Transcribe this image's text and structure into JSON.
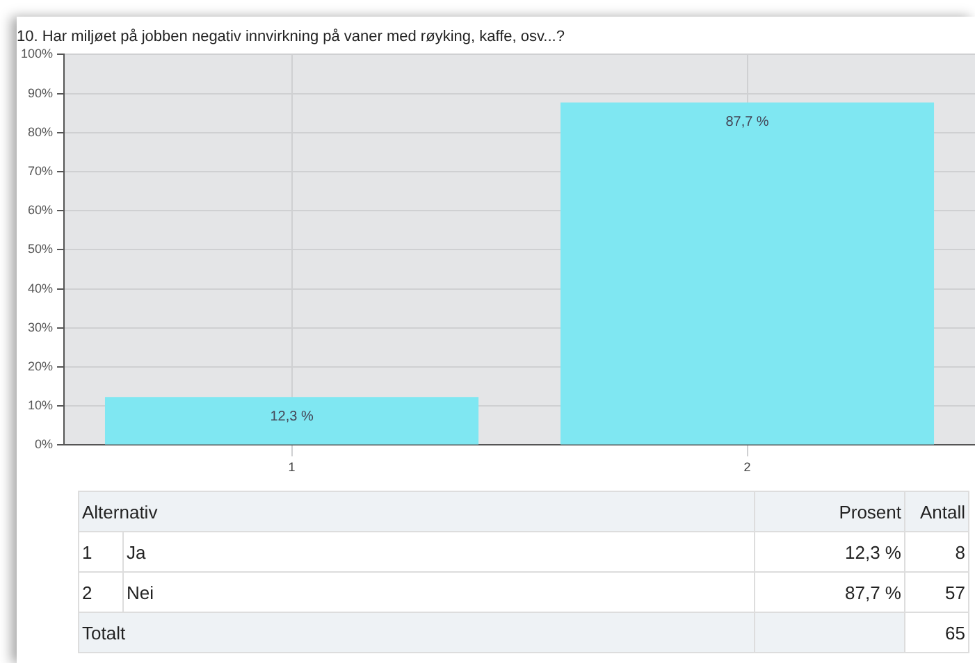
{
  "chart_data": {
    "type": "bar",
    "title": "10. Har miljøet på jobben negativ innvirkning på vaner med røyking, kaffe, osv...?",
    "categories": [
      "1",
      "2"
    ],
    "values": [
      12.3,
      87.7
    ],
    "value_labels": [
      "12,3 %",
      "87,7 %"
    ],
    "color": "#7fe7f2",
    "ylim": [
      0,
      100
    ],
    "yticks": [
      {
        "value": 0,
        "label": "0%"
      },
      {
        "value": 10,
        "label": "10%"
      },
      {
        "value": 20,
        "label": "20%"
      },
      {
        "value": 30,
        "label": "30%"
      },
      {
        "value": 40,
        "label": "40%"
      },
      {
        "value": 50,
        "label": "50%"
      },
      {
        "value": 60,
        "label": "60%"
      },
      {
        "value": 70,
        "label": "70%"
      },
      {
        "value": 80,
        "label": "80%"
      },
      {
        "value": 90,
        "label": "90%"
      },
      {
        "value": 100,
        "label": "100%"
      }
    ],
    "grid": true,
    "annotations": [
      "Alternativ",
      "Prosent",
      "Antall",
      "1",
      "Ja",
      "12,3 %",
      "8",
      "2",
      "Nei",
      "87,7 %",
      "57",
      "Totalt",
      "65"
    ]
  }
}
